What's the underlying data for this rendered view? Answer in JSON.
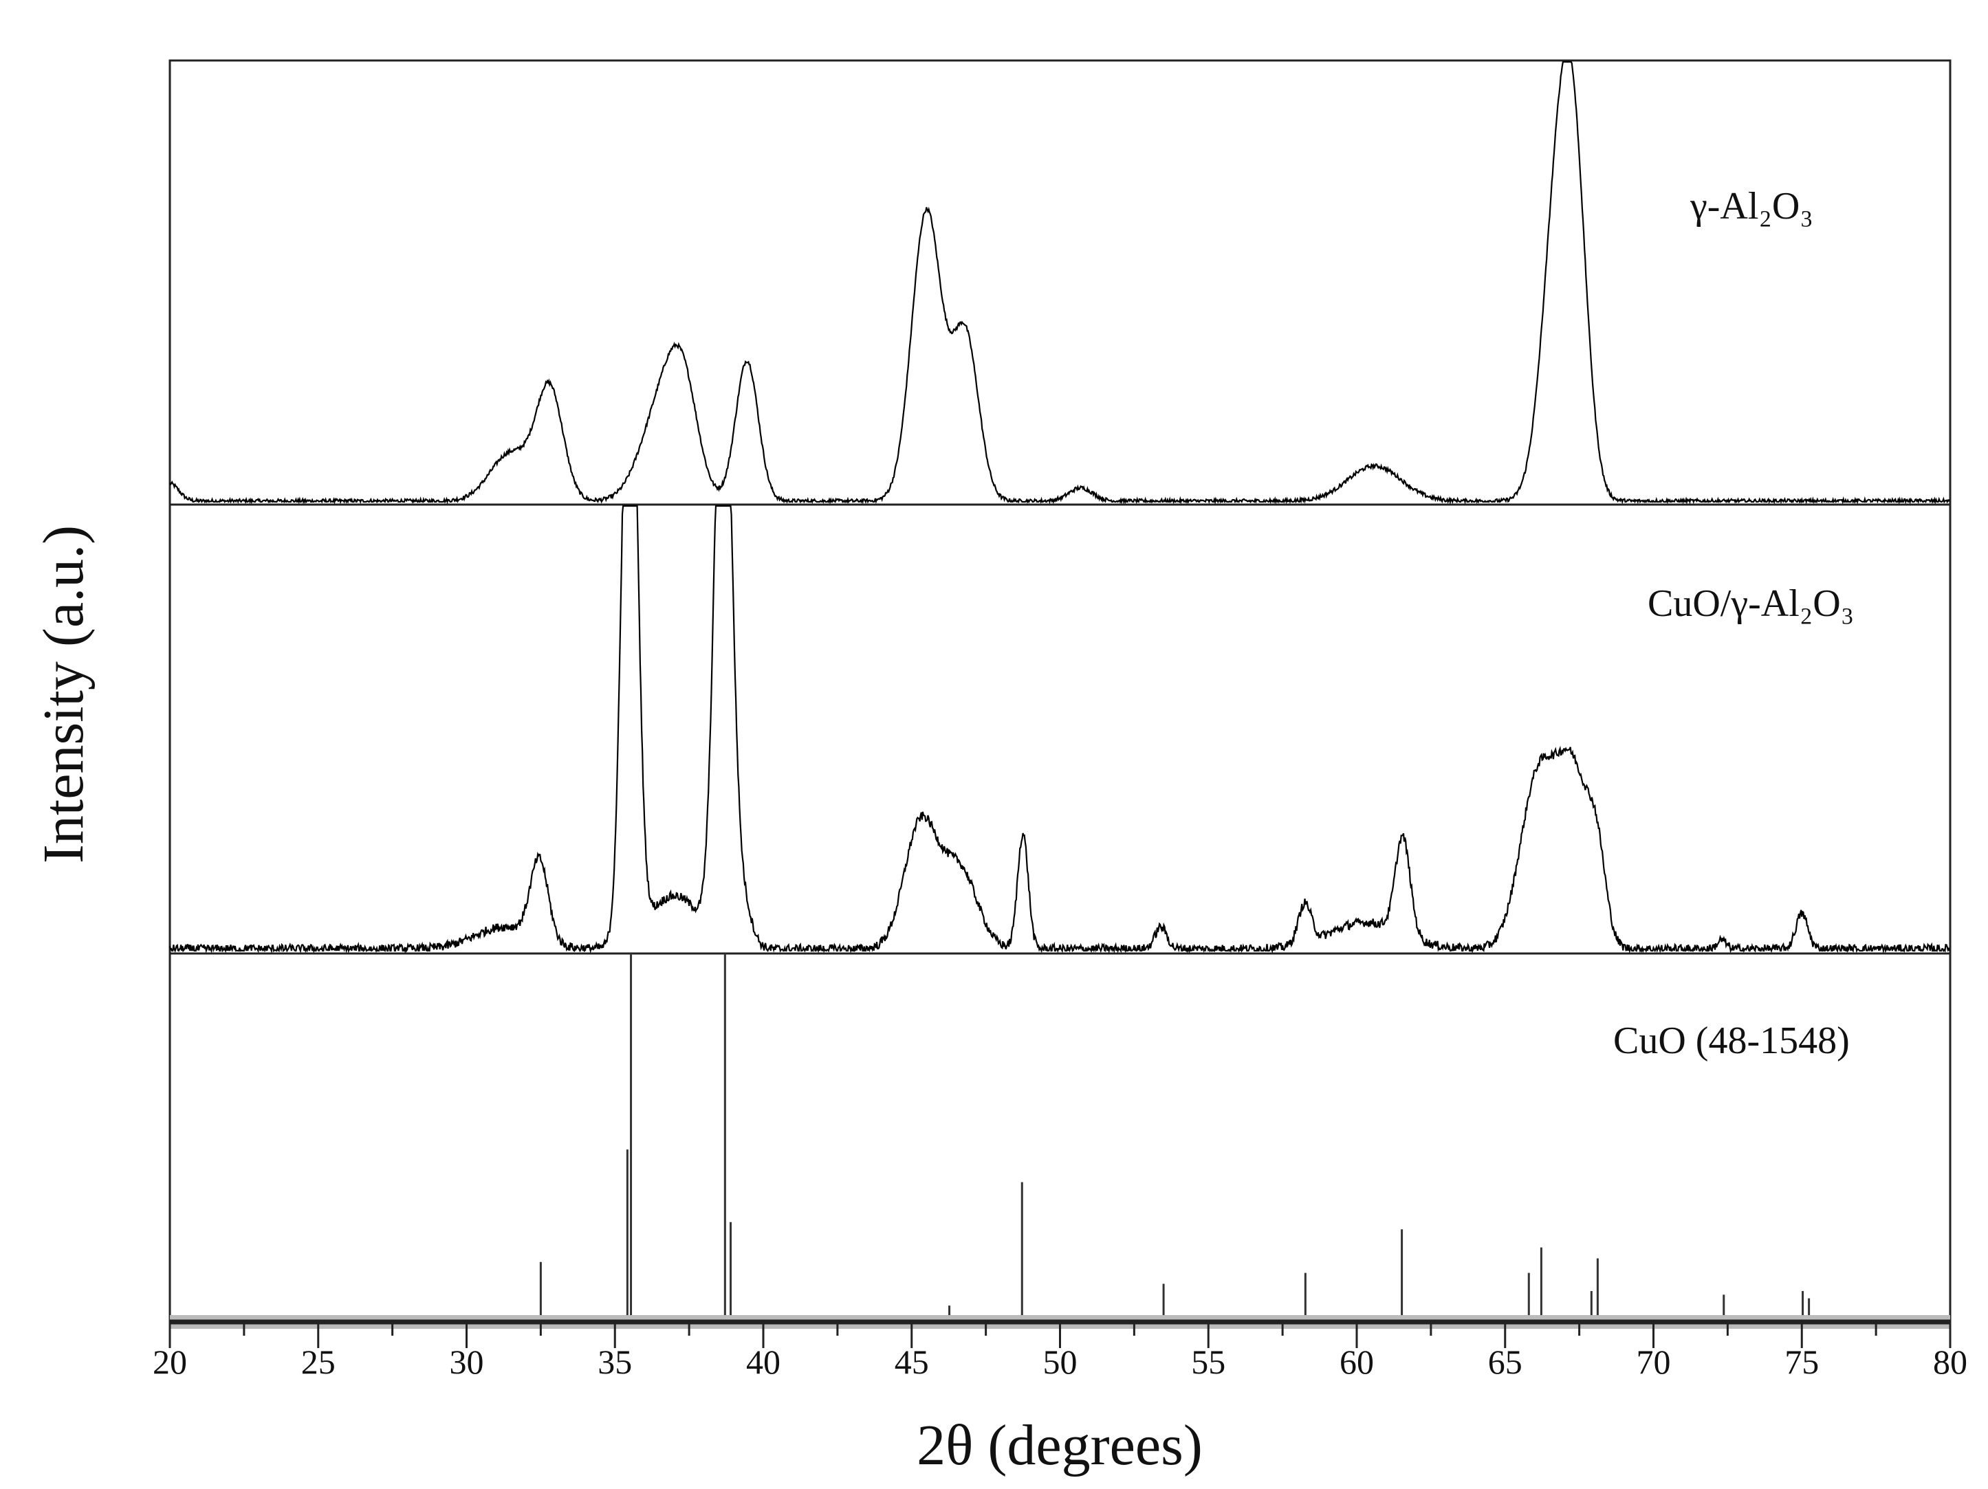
{
  "chart_data": {
    "type": "line",
    "xlabel": "2θ (degrees)",
    "ylabel": "Intensity (a.u.)",
    "xlim": [
      20,
      80
    ],
    "xticks": [
      20,
      25,
      30,
      35,
      40,
      45,
      50,
      55,
      60,
      65,
      70,
      75,
      80
    ],
    "xtick_labels": [
      "20",
      "25",
      "30",
      "35",
      "40",
      "45",
      "50",
      "55",
      "60",
      "65",
      "70",
      "75",
      "80"
    ],
    "grid": false,
    "layout": "three stacked panels sharing x axis",
    "line_color": "#000000",
    "series": [
      {
        "name": "γ-Al₂O₃",
        "kind": "xrd-pattern",
        "peaks": [
          {
            "two_theta": 20.0,
            "rel_intensity": 4,
            "width": 0.3
          },
          {
            "two_theta": 31.5,
            "rel_intensity": 11,
            "width": 0.7
          },
          {
            "two_theta": 32.8,
            "rel_intensity": 25,
            "width": 0.45
          },
          {
            "two_theta": 36.6,
            "rel_intensity": 22,
            "width": 0.7
          },
          {
            "two_theta": 37.3,
            "rel_intensity": 20,
            "width": 0.5
          },
          {
            "two_theta": 39.45,
            "rel_intensity": 32,
            "width": 0.38
          },
          {
            "two_theta": 45.5,
            "rel_intensity": 66,
            "width": 0.5
          },
          {
            "two_theta": 46.8,
            "rel_intensity": 38,
            "width": 0.45
          },
          {
            "two_theta": 50.7,
            "rel_intensity": 3,
            "width": 0.4
          },
          {
            "two_theta": 60.6,
            "rel_intensity": 8,
            "width": 0.9
          },
          {
            "two_theta": 66.7,
            "rel_intensity": 55,
            "width": 0.5
          },
          {
            "two_theta": 67.3,
            "rel_intensity": 70,
            "width": 0.45
          }
        ]
      },
      {
        "name": "CuO/γ-Al₂O₃",
        "kind": "xrd-pattern",
        "peaks": [
          {
            "two_theta": 31.3,
            "rel_intensity": 5,
            "width": 1.0
          },
          {
            "two_theta": 32.45,
            "rel_intensity": 18,
            "width": 0.3
          },
          {
            "two_theta": 35.5,
            "rel_intensity": 160,
            "width": 0.25
          },
          {
            "two_theta": 37.0,
            "rel_intensity": 12,
            "width": 0.9
          },
          {
            "two_theta": 38.65,
            "rel_intensity": 150,
            "width": 0.28
          },
          {
            "two_theta": 39.3,
            "rel_intensity": 10,
            "width": 0.3
          },
          {
            "two_theta": 45.3,
            "rel_intensity": 28,
            "width": 0.55
          },
          {
            "two_theta": 46.6,
            "rel_intensity": 18,
            "width": 0.6
          },
          {
            "two_theta": 48.75,
            "rel_intensity": 26,
            "width": 0.18
          },
          {
            "two_theta": 53.4,
            "rel_intensity": 5,
            "width": 0.2
          },
          {
            "two_theta": 58.25,
            "rel_intensity": 9,
            "width": 0.22
          },
          {
            "two_theta": 60.3,
            "rel_intensity": 6,
            "width": 1.2
          },
          {
            "two_theta": 61.55,
            "rel_intensity": 22,
            "width": 0.25
          },
          {
            "two_theta": 66.1,
            "rel_intensity": 38,
            "width": 0.6
          },
          {
            "two_theta": 67.3,
            "rel_intensity": 38,
            "width": 0.55
          },
          {
            "two_theta": 68.1,
            "rel_intensity": 16,
            "width": 0.3
          },
          {
            "two_theta": 72.3,
            "rel_intensity": 2,
            "width": 0.15
          },
          {
            "two_theta": 75.0,
            "rel_intensity": 8,
            "width": 0.2
          }
        ]
      },
      {
        "name": "CuO (48-1548)",
        "kind": "reference-sticks",
        "sticks": [
          {
            "two_theta": 32.5,
            "rel_intensity": 15
          },
          {
            "two_theta": 35.42,
            "rel_intensity": 46
          },
          {
            "two_theta": 35.54,
            "rel_intensity": 100
          },
          {
            "two_theta": 38.71,
            "rel_intensity": 100
          },
          {
            "two_theta": 38.9,
            "rel_intensity": 26
          },
          {
            "two_theta": 46.27,
            "rel_intensity": 3
          },
          {
            "two_theta": 48.72,
            "rel_intensity": 37
          },
          {
            "two_theta": 53.49,
            "rel_intensity": 9
          },
          {
            "two_theta": 58.27,
            "rel_intensity": 12
          },
          {
            "two_theta": 61.52,
            "rel_intensity": 24
          },
          {
            "two_theta": 65.8,
            "rel_intensity": 12
          },
          {
            "two_theta": 66.22,
            "rel_intensity": 19
          },
          {
            "two_theta": 67.91,
            "rel_intensity": 7
          },
          {
            "two_theta": 68.12,
            "rel_intensity": 16
          },
          {
            "two_theta": 72.37,
            "rel_intensity": 6
          },
          {
            "two_theta": 75.03,
            "rel_intensity": 7
          },
          {
            "two_theta": 75.24,
            "rel_intensity": 5
          }
        ]
      }
    ]
  }
}
